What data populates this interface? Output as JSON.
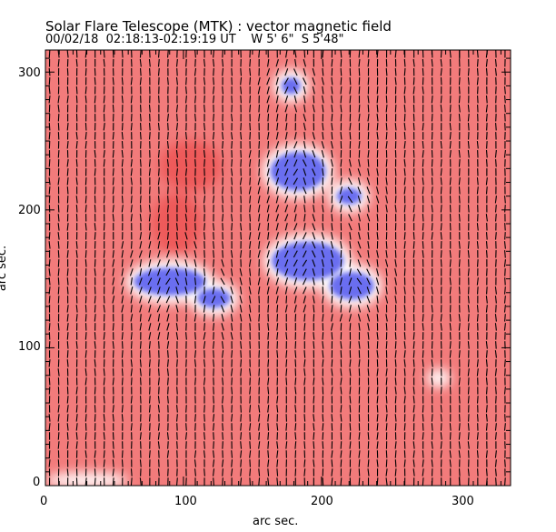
{
  "chart_data": {
    "type": "heatmap",
    "title": "Solar Flare Telescope (MTK) : vector magnetic field",
    "subtitle": "00/02/18  02:18:13-02:19:19 UT    W 5' 6\"  S 5'48\"",
    "xlabel": "arc sec.",
    "ylabel": "arc sec.",
    "xlim": [
      0,
      337
    ],
    "ylim": [
      0,
      316
    ],
    "xticks": [
      "0",
      "100",
      "200",
      "300"
    ],
    "yticks": [
      "0",
      "100",
      "200",
      "300"
    ],
    "colors": {
      "positive": "#f27b7b",
      "positive_strong": "#ee5a5a",
      "negative": "#6b6ef0",
      "neutral": "#ffffff"
    },
    "regions": [
      {
        "polarity": "negative",
        "x": 183,
        "y": 228,
        "rx": 20,
        "ry": 14
      },
      {
        "polarity": "negative",
        "x": 220,
        "y": 210,
        "rx": 9,
        "ry": 6
      },
      {
        "polarity": "negative",
        "x": 190,
        "y": 163,
        "rx": 26,
        "ry": 14
      },
      {
        "polarity": "negative",
        "x": 222,
        "y": 145,
        "rx": 16,
        "ry": 10
      },
      {
        "polarity": "negative",
        "x": 90,
        "y": 148,
        "rx": 26,
        "ry": 10
      },
      {
        "polarity": "negative",
        "x": 122,
        "y": 136,
        "rx": 12,
        "ry": 7
      },
      {
        "polarity": "negative",
        "x": 178,
        "y": 290,
        "rx": 7,
        "ry": 6
      },
      {
        "polarity": "positive_strong",
        "x": 105,
        "y": 232,
        "rx": 22,
        "ry": 18
      },
      {
        "polarity": "positive_strong",
        "x": 95,
        "y": 190,
        "rx": 18,
        "ry": 22
      },
      {
        "polarity": "neutral",
        "x": 285,
        "y": 78,
        "rx": 9,
        "ry": 7
      },
      {
        "polarity": "neutral",
        "x": 30,
        "y": 4,
        "rx": 30,
        "ry": 6
      }
    ],
    "vector_grid_spacing_arcsec": 6.6,
    "vector_direction": "mostly vertical"
  }
}
